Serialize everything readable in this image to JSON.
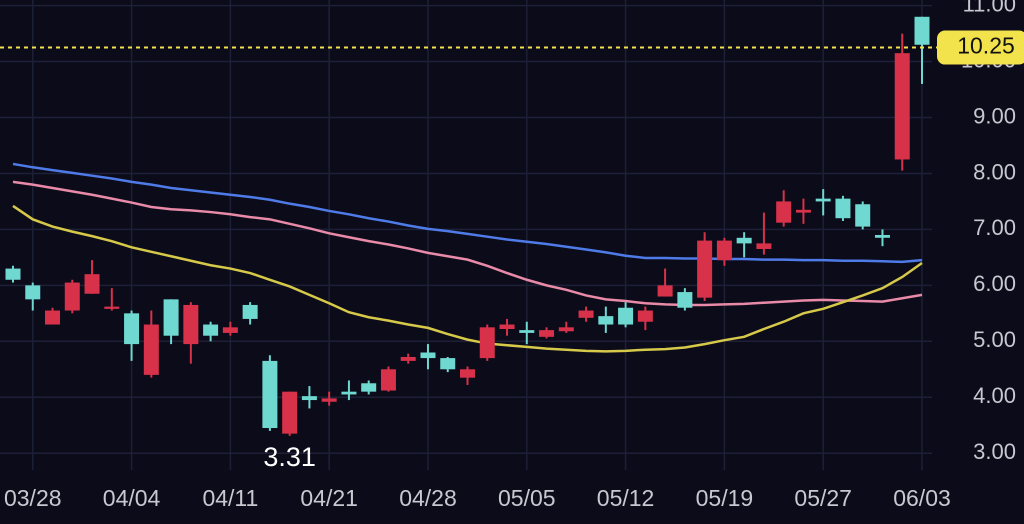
{
  "chart_data": {
    "type": "candlestick",
    "categories": [
      null,
      "03/28",
      null,
      null,
      null,
      null,
      "04/04",
      null,
      null,
      null,
      null,
      "04/11",
      null,
      null,
      null,
      null,
      "04/21",
      null,
      null,
      null,
      null,
      "04/28",
      null,
      null,
      null,
      null,
      "05/05",
      null,
      null,
      null,
      null,
      "05/12",
      null,
      null,
      null,
      null,
      "05/19",
      null,
      null,
      null,
      null,
      "05/27",
      null,
      null,
      null,
      null,
      "06/03"
    ],
    "open": [
      6.1,
      5.75,
      5.55,
      6.05,
      6.2,
      5.62,
      4.95,
      5.3,
      5.1,
      5.65,
      5.1,
      5.25,
      5.4,
      3.45,
      4.1,
      3.95,
      3.98,
      4.05,
      4.1,
      4.5,
      4.72,
      4.7,
      4.5,
      4.5,
      5.25,
      5.3,
      5.15,
      5.2,
      5.25,
      5.55,
      5.3,
      5.3,
      5.55,
      6.0,
      5.6,
      6.8,
      6.8,
      6.75,
      6.75,
      7.5,
      7.35,
      7.5,
      7.2,
      7.05,
      6.85,
      10.15,
      10.3
    ],
    "high": [
      6.35,
      6.05,
      5.6,
      6.1,
      6.45,
      5.95,
      5.55,
      5.55,
      5.75,
      5.7,
      5.35,
      5.35,
      5.7,
      4.75,
      4.1,
      4.2,
      4.1,
      4.3,
      4.3,
      4.55,
      4.78,
      4.95,
      4.72,
      4.55,
      5.3,
      5.4,
      5.35,
      5.25,
      5.35,
      5.62,
      5.62,
      5.7,
      5.62,
      6.3,
      5.95,
      6.95,
      6.85,
      6.95,
      7.3,
      7.7,
      7.55,
      7.72,
      7.6,
      7.5,
      7.0,
      10.5,
      10.8
    ],
    "low": [
      6.05,
      5.55,
      5.3,
      5.5,
      5.85,
      5.55,
      4.65,
      4.35,
      4.95,
      4.6,
      5.0,
      5.1,
      5.3,
      3.4,
      3.31,
      3.8,
      3.85,
      3.95,
      4.05,
      4.1,
      4.6,
      4.5,
      4.45,
      4.22,
      4.65,
      5.1,
      4.95,
      5.05,
      5.15,
      5.35,
      5.15,
      5.25,
      5.2,
      5.8,
      5.55,
      5.72,
      6.35,
      6.5,
      6.55,
      7.05,
      7.1,
      7.25,
      7.15,
      7.0,
      6.7,
      8.05,
      9.6
    ],
    "close": [
      6.3,
      6.0,
      5.3,
      5.55,
      5.85,
      5.58,
      5.5,
      4.4,
      5.75,
      4.95,
      5.3,
      5.15,
      5.65,
      4.65,
      3.35,
      4.02,
      3.92,
      4.1,
      4.25,
      4.12,
      4.65,
      4.8,
      4.7,
      4.35,
      4.7,
      5.22,
      5.2,
      5.08,
      5.18,
      5.42,
      5.45,
      5.6,
      5.35,
      5.8,
      5.88,
      5.78,
      6.45,
      6.85,
      6.65,
      7.12,
      7.3,
      7.55,
      7.55,
      7.45,
      6.9,
      8.25,
      10.8
    ],
    "up_color": "#6fd8d0",
    "down_color": "#d7324a",
    "lines": [
      {
        "color": "#4f7be8",
        "values": [
          8.17,
          8.11,
          8.06,
          8.01,
          7.96,
          7.91,
          7.85,
          7.8,
          7.74,
          7.7,
          7.66,
          7.62,
          7.58,
          7.53,
          7.46,
          7.4,
          7.33,
          7.27,
          7.2,
          7.14,
          7.07,
          7.01,
          6.97,
          6.92,
          6.87,
          6.82,
          6.78,
          6.74,
          6.69,
          6.64,
          6.59,
          6.53,
          6.49,
          6.49,
          6.48,
          6.48,
          6.47,
          6.47,
          6.46,
          6.46,
          6.45,
          6.45,
          6.44,
          6.44,
          6.43,
          6.42,
          6.45
        ]
      },
      {
        "color": "#e88aa8",
        "values": [
          7.85,
          7.8,
          7.74,
          7.68,
          7.62,
          7.55,
          7.48,
          7.4,
          7.36,
          7.34,
          7.31,
          7.27,
          7.22,
          7.18,
          7.1,
          7.02,
          6.93,
          6.86,
          6.79,
          6.73,
          6.66,
          6.58,
          6.52,
          6.46,
          6.35,
          6.22,
          6.1,
          6.0,
          5.92,
          5.82,
          5.75,
          5.72,
          5.68,
          5.66,
          5.65,
          5.65,
          5.66,
          5.67,
          5.69,
          5.71,
          5.73,
          5.74,
          5.73,
          5.72,
          5.71,
          5.77,
          5.83
        ]
      },
      {
        "color": "#d6c94a",
        "values": [
          7.42,
          7.18,
          7.05,
          6.96,
          6.88,
          6.79,
          6.68,
          6.6,
          6.52,
          6.44,
          6.36,
          6.3,
          6.22,
          6.1,
          5.98,
          5.83,
          5.68,
          5.52,
          5.43,
          5.37,
          5.3,
          5.24,
          5.13,
          5.03,
          4.96,
          4.93,
          4.9,
          4.87,
          4.85,
          4.83,
          4.82,
          4.83,
          4.85,
          4.86,
          4.89,
          4.95,
          5.02,
          5.08,
          5.22,
          5.35,
          5.5,
          5.58,
          5.7,
          5.82,
          5.95,
          6.15,
          6.4
        ]
      }
    ],
    "low_annotation_index": 14,
    "last_price": 10.25,
    "last_price_color": "#f2e24b",
    "ylim": [
      2.7,
      11.1
    ],
    "yticks": [
      {
        "value": 3,
        "label": "3.00"
      },
      {
        "value": 4,
        "label": "4.00"
      },
      {
        "value": 5,
        "label": "5.00"
      },
      {
        "value": 6,
        "label": "6.00"
      },
      {
        "value": 7,
        "label": "7.00"
      },
      {
        "value": 8,
        "label": "8.00"
      },
      {
        "value": 9,
        "label": "9.00"
      },
      {
        "value": 10,
        "label": "10.00"
      },
      {
        "value": 11,
        "label": "11.00"
      }
    ],
    "grid": true
  }
}
